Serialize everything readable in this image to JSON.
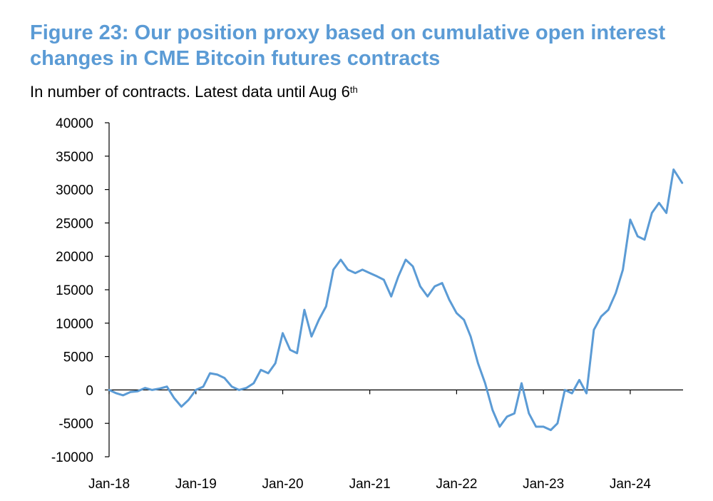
{
  "figure": {
    "title": "Figure 23: Our position proxy based on cumulative open interest changes in CME Bitcoin futures contracts",
    "subtitle": "In number of contracts. Latest data until Aug 6",
    "subtitle_sup": "th"
  },
  "chart_data": {
    "type": "line",
    "title": "Figure 23: Our position proxy based on cumulative open interest changes in CME Bitcoin futures contracts",
    "subtitle": "In number of contracts. Latest data until Aug 6th",
    "xlabel": "",
    "ylabel": "",
    "ylim": [
      -10000,
      40000
    ],
    "yticks": [
      -10000,
      -5000,
      0,
      5000,
      10000,
      15000,
      20000,
      25000,
      30000,
      35000,
      40000
    ],
    "ytick_labels": [
      "-10000",
      "-5000",
      "0",
      "5000",
      "10000",
      "15000",
      "20000",
      "25000",
      "30000",
      "35000",
      "40000"
    ],
    "xticks": [
      "2018-01",
      "2019-01",
      "2020-01",
      "2021-01",
      "2022-01",
      "2023-01",
      "2024-01"
    ],
    "xtick_labels": [
      "Jan-18",
      "Jan-19",
      "Jan-20",
      "Jan-21",
      "Jan-22",
      "Jan-23",
      "Jan-24"
    ],
    "grid": false,
    "legend": "none",
    "line_color": "#5b9bd5",
    "series": [
      {
        "x": [
          "2018-01-01",
          "2018-02-01",
          "2018-03-01",
          "2018-04-01",
          "2018-05-01",
          "2018-06-01",
          "2018-07-01",
          "2018-08-01",
          "2018-09-01",
          "2018-10-01",
          "2018-11-01",
          "2018-12-01",
          "2019-01-01",
          "2019-02-01",
          "2019-03-01",
          "2019-04-01",
          "2019-05-01",
          "2019-06-01",
          "2019-07-01",
          "2019-08-01",
          "2019-09-01",
          "2019-10-01",
          "2019-11-01",
          "2019-12-01",
          "2020-01-01",
          "2020-02-01",
          "2020-03-01",
          "2020-04-01",
          "2020-05-01",
          "2020-06-01",
          "2020-07-01",
          "2020-08-01",
          "2020-09-01",
          "2020-10-01",
          "2020-11-01",
          "2020-12-01",
          "2021-01-01",
          "2021-02-01",
          "2021-03-01",
          "2021-04-01",
          "2021-05-01",
          "2021-06-01",
          "2021-07-01",
          "2021-08-01",
          "2021-09-01",
          "2021-10-01",
          "2021-11-01",
          "2021-12-01",
          "2022-01-01",
          "2022-02-01",
          "2022-03-01",
          "2022-04-01",
          "2022-05-01",
          "2022-06-01",
          "2022-07-01",
          "2022-08-01",
          "2022-09-01",
          "2022-10-01",
          "2022-11-01",
          "2022-12-01",
          "2023-01-01",
          "2023-02-01",
          "2023-03-01",
          "2023-04-01",
          "2023-05-01",
          "2023-06-01",
          "2023-07-01",
          "2023-08-01",
          "2023-09-01",
          "2023-10-01",
          "2023-11-01",
          "2023-12-01",
          "2024-01-01",
          "2024-02-01",
          "2024-03-01",
          "2024-04-01",
          "2024-05-01",
          "2024-06-01",
          "2024-07-01",
          "2024-08-06"
        ],
        "values": [
          0,
          -500,
          -800,
          -300,
          -200,
          300,
          0,
          200,
          500,
          -1200,
          -2500,
          -1500,
          0,
          500,
          2500,
          2300,
          1800,
          500,
          0,
          300,
          1000,
          3000,
          2500,
          4000,
          8500,
          6000,
          5500,
          12000,
          8000,
          10500,
          12500,
          18000,
          19500,
          18000,
          17500,
          18000,
          17500,
          17000,
          16500,
          14000,
          17000,
          19500,
          18500,
          15500,
          14000,
          15500,
          16000,
          13500,
          11500,
          10500,
          8000,
          4000,
          1000,
          -3000,
          -5500,
          -4000,
          -3500,
          1000,
          -3500,
          -5500,
          -5500,
          -6000,
          -5000,
          0,
          -500,
          1500,
          -500,
          9000,
          11000,
          12000,
          14500,
          18000,
          25500,
          23000,
          22500,
          26500,
          28000,
          26500,
          33000,
          31000
        ]
      }
    ]
  }
}
